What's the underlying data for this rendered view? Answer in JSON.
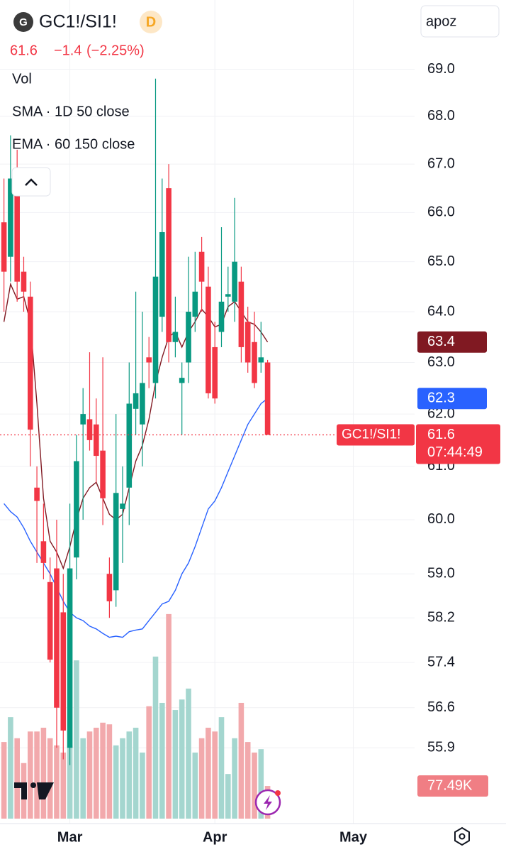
{
  "header": {
    "logo": "G",
    "symbol": "GC1!/SI1!",
    "interval": "D",
    "last": "61.6",
    "change": "−1.4",
    "change_pct": "(−2.25%)",
    "search": "apoz"
  },
  "chart_data": {
    "type": "candlestick",
    "log_scale": true,
    "grid": true,
    "up_color": "#089981",
    "down_color": "#f23645",
    "x": [
      0,
      1,
      2,
      3,
      4,
      5,
      6,
      7,
      8,
      9,
      10,
      11,
      12,
      13,
      14,
      15,
      16,
      17,
      18,
      19,
      20,
      21,
      22,
      23,
      24,
      25,
      26,
      27,
      28,
      29,
      30,
      31,
      32,
      33,
      34,
      35,
      36,
      37,
      38,
      39,
      40
    ],
    "open": [
      65.8,
      65.1,
      66.6,
      64.8,
      64.3,
      60.6,
      59.6,
      58.85,
      59.1,
      58.3,
      55.9,
      59.3,
      61.8,
      61.9,
      61.8,
      61.3,
      59.0,
      58.7,
      60.2,
      60.6,
      62.1,
      61.8,
      63.1,
      62.6,
      63.9,
      66.5,
      63.4,
      62.6,
      63.0,
      63.9,
      65.2,
      64.5,
      63.3,
      63.6,
      64.3,
      64.2,
      64.6,
      63.8,
      63.4,
      63.0,
      63.0
    ],
    "high": [
      66.7,
      67.6,
      67.3,
      65.1,
      64.6,
      61.0,
      60.3,
      59.3,
      60.0,
      59.0,
      60.3,
      61.6,
      62.5,
      63.2,
      62.3,
      63.1,
      59.3,
      62.0,
      61.0,
      63.0,
      64.4,
      64.0,
      63.5,
      68.8,
      66.7,
      67.0,
      64.3,
      63.0,
      65.1,
      65.2,
      65.5,
      64.9,
      63.8,
      65.7,
      64.9,
      66.3,
      64.9,
      64.1,
      64.0,
      63.8,
      63.05
    ],
    "low": [
      64.0,
      64.6,
      64.2,
      64.0,
      61.0,
      59.2,
      58.9,
      57.4,
      55.9,
      55.7,
      55.6,
      58.9,
      60.0,
      61.3,
      60.7,
      59.9,
      58.2,
      58.4,
      59.2,
      59.9,
      61.6,
      61.0,
      62.5,
      62.3,
      63.6,
      63.0,
      63.1,
      61.6,
      62.6,
      63.6,
      64.0,
      62.3,
      62.2,
      63.3,
      64.0,
      63.8,
      63.0,
      62.8,
      62.5,
      62.8,
      61.6
    ],
    "close": [
      64.8,
      66.7,
      64.6,
      64.4,
      61.7,
      60.35,
      59.2,
      57.45,
      56.6,
      56.2,
      59.1,
      61.1,
      62.0,
      61.5,
      61.2,
      60.4,
      58.5,
      60.5,
      60.3,
      62.2,
      62.4,
      62.6,
      63.0,
      64.7,
      65.6,
      63.4,
      63.6,
      62.7,
      64.0,
      64.4,
      64.6,
      62.4,
      62.3,
      64.2,
      64.35,
      65.0,
      63.3,
      63.0,
      62.6,
      63.1,
      61.6
    ],
    "countdown": "07:44:49",
    "xlim": [
      -0.6,
      62.3
    ],
    "xticks": [
      {
        "value": 10,
        "label": "Mar"
      },
      {
        "value": 32,
        "label": "Apr"
      },
      {
        "value": 53,
        "label": "May"
      }
    ],
    "ylim": [
      54.6,
      70.5
    ],
    "yticks": [
      {
        "value": 69,
        "label": "69.0"
      },
      {
        "value": 68,
        "label": "68.0"
      },
      {
        "value": 67,
        "label": "67.0"
      },
      {
        "value": 66,
        "label": "66.0"
      },
      {
        "value": 65,
        "label": "65.0"
      },
      {
        "value": 64,
        "label": "64.0"
      },
      {
        "value": 63,
        "label": "63.0"
      },
      {
        "value": 62,
        "label": "62.0"
      },
      {
        "value": 61,
        "label": "61.0"
      },
      {
        "value": 60,
        "label": "60.0"
      },
      {
        "value": 59,
        "label": "59.0"
      },
      58.2,
      57.4,
      56.6,
      55.9
    ],
    "series": [
      {
        "name": "SMA · 1D 50 close",
        "color": "#2962ff",
        "values": [
          60.3,
          60.15,
          60.05,
          59.85,
          59.6,
          59.4,
          59.2,
          59.0,
          58.75,
          58.5,
          58.3,
          58.2,
          58.15,
          58.05,
          58.0,
          57.92,
          57.85,
          57.87,
          57.85,
          57.95,
          57.98,
          58.0,
          58.15,
          58.3,
          58.45,
          58.5,
          58.7,
          59.0,
          59.2,
          59.5,
          59.85,
          60.2,
          60.35,
          60.6,
          60.9,
          61.2,
          61.5,
          61.8,
          62.0,
          62.2,
          62.3
        ]
      },
      {
        "name": "EMA · 60 150 close",
        "color": "#801922",
        "values": [
          63.8,
          64.55,
          64.25,
          64.3,
          63.8,
          62.2,
          60.4,
          59.6,
          59.4,
          59.1,
          59.5,
          60.0,
          60.4,
          60.6,
          60.7,
          60.4,
          60.1,
          60.0,
          60.1,
          60.6,
          61.1,
          61.4,
          61.9,
          62.6,
          63.1,
          63.5,
          63.6,
          63.3,
          63.6,
          63.8,
          64.05,
          63.9,
          63.7,
          63.75,
          64.1,
          64.2,
          64.0,
          63.8,
          63.75,
          63.6,
          63.4
        ]
      }
    ],
    "volume": {
      "name": "Vol",
      "up_color": "#a4d6cf",
      "down_color": "#f2a9ac",
      "label_color": "#f07e84",
      "lim": [
        0,
        700000
      ],
      "values": [
        182000,
        241000,
        191000,
        132000,
        207000,
        207000,
        216000,
        191000,
        174000,
        157000,
        174000,
        376000,
        191000,
        207000,
        216000,
        228000,
        224000,
        174000,
        191000,
        207000,
        216000,
        157000,
        267000,
        385000,
        275000,
        486000,
        258000,
        283000,
        309000,
        157000,
        191000,
        216000,
        207000,
        241000,
        106000,
        191000,
        275000,
        182000,
        157000,
        165000,
        77490
      ],
      "value_labels": [
        null,
        null,
        null,
        null,
        null,
        null,
        null,
        null,
        null,
        null,
        null,
        null,
        null,
        null,
        null,
        null,
        null,
        null,
        null,
        null,
        null,
        null,
        null,
        null,
        null,
        null,
        null,
        null,
        null,
        null,
        null,
        null,
        null,
        null,
        null,
        null,
        null,
        null,
        null,
        null,
        "77.49K"
      ]
    }
  }
}
